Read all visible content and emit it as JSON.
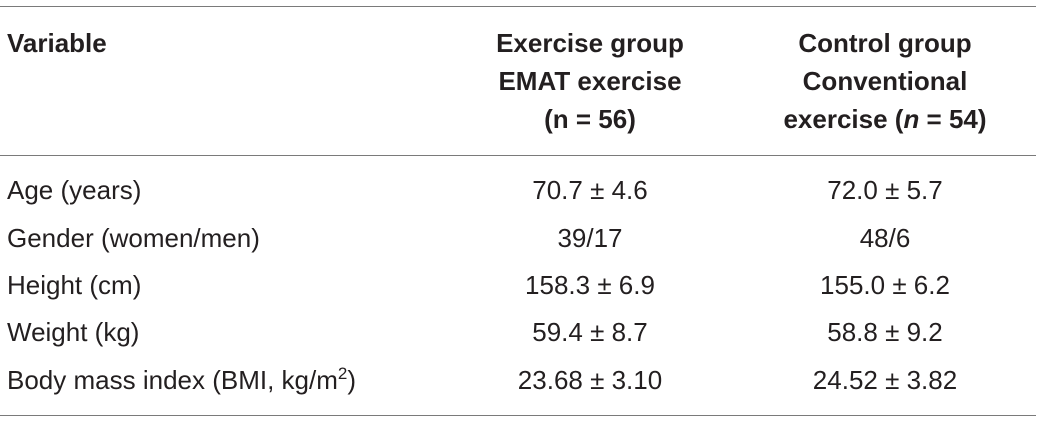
{
  "table": {
    "headers": {
      "variable": "Variable",
      "exercise": [
        "Exercise group",
        "EMAT exercise",
        "(n = 56)"
      ],
      "control": [
        "Control group",
        "Conventional",
        "exercise (",
        "n",
        " = 54)"
      ]
    },
    "rows": [
      {
        "variable": "Age (years)",
        "exercise": "70.7 ± 4.6",
        "control": "72.0 ± 5.7"
      },
      {
        "variable": "Gender (women/men)",
        "exercise": "39/17",
        "control": "48/6"
      },
      {
        "variable": "Height (cm)",
        "exercise": "158.3 ± 6.9",
        "control": "155.0 ± 6.2"
      },
      {
        "variable": "Weight (kg)",
        "exercise": "59.4 ± 8.7",
        "control": "58.8 ± 9.2"
      },
      {
        "variable_prefix": "Body mass index (BMI, kg/m",
        "variable_sup": "2",
        "variable_suffix": ")",
        "exercise": "23.68 ± 3.10",
        "control": "24.52 ± 3.82"
      }
    ]
  }
}
